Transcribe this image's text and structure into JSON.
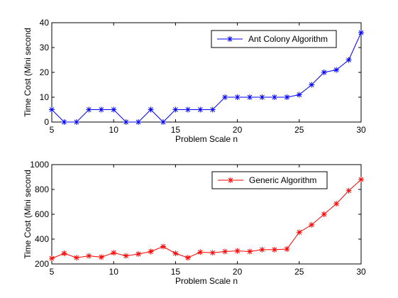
{
  "chart_data": [
    {
      "type": "line",
      "xlabel": "Problem Scale n",
      "ylabel": "Time Cost (Mini second",
      "xlim": [
        5,
        30
      ],
      "ylim": [
        0,
        40
      ],
      "xticks": [
        5,
        10,
        15,
        20,
        25,
        30
      ],
      "yticks": [
        0,
        10,
        20,
        30,
        40
      ],
      "grid": false,
      "legend_position": "top-right",
      "series": [
        {
          "name": "Ant Colony Algorithm",
          "color": "#0000ff",
          "marker": "asterisk",
          "x": [
            5,
            6,
            7,
            8,
            9,
            10,
            11,
            12,
            13,
            14,
            15,
            16,
            17,
            18,
            19,
            20,
            21,
            22,
            23,
            24,
            25,
            26,
            27,
            28,
            29,
            30
          ],
          "y": [
            5,
            0,
            0,
            5,
            5,
            5,
            0,
            0,
            5,
            0,
            5,
            5,
            5,
            5,
            10,
            10,
            10,
            10,
            10,
            10,
            11,
            15,
            20,
            21,
            25,
            36
          ]
        }
      ]
    },
    {
      "type": "line",
      "xlabel": "Problem Scale n",
      "ylabel": "Time Cost (Mini second",
      "xlim": [
        5,
        30
      ],
      "ylim": [
        200,
        1000
      ],
      "xticks": [
        5,
        10,
        15,
        20,
        25,
        30
      ],
      "yticks": [
        200,
        400,
        600,
        800,
        1000
      ],
      "grid": false,
      "legend_position": "top-right",
      "series": [
        {
          "name": "Generic Algorithm",
          "color": "#ff0000",
          "marker": "asterisk",
          "x": [
            5,
            6,
            7,
            8,
            9,
            10,
            11,
            12,
            13,
            14,
            15,
            16,
            17,
            18,
            19,
            20,
            21,
            22,
            23,
            24,
            25,
            26,
            27,
            28,
            29,
            30
          ],
          "y": [
            245,
            285,
            250,
            265,
            255,
            290,
            265,
            280,
            300,
            340,
            285,
            250,
            295,
            290,
            300,
            305,
            300,
            315,
            315,
            320,
            455,
            515,
            600,
            685,
            790,
            880
          ]
        }
      ]
    }
  ]
}
